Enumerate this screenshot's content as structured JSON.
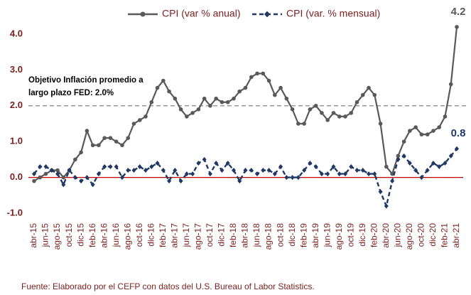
{
  "chart_data": {
    "type": "line",
    "legend": "top",
    "annotation": {
      "lines": [
        "Objetivo Inflación promedio a",
        "largo plazo FED: 2.0%"
      ],
      "value": 2.0,
      "color": "#999999"
    },
    "zero_line": "#c00000",
    "source": "Fuente: Elaborado por el CEFP con datos del U.S. Bureau of Labor Statistics.",
    "categories": [
      "abr-15",
      null,
      "jun-15",
      null,
      "ago-15",
      null,
      "oct-15",
      null,
      "dic-15",
      null,
      "feb-16",
      null,
      "abr-16",
      null,
      "jun-16",
      null,
      "ago-16",
      null,
      "oct-16",
      null,
      "dic-16",
      null,
      "feb-17",
      null,
      "abr-17",
      null,
      "jun-17",
      null,
      "ago-17",
      null,
      "oct-17",
      null,
      "dic-17",
      null,
      "feb-18",
      null,
      "abr-18",
      null,
      "jun-18",
      null,
      "ago-18",
      null,
      "oct-18",
      null,
      "dic-18",
      null,
      "feb-19",
      null,
      "abr-19",
      null,
      "jun-19",
      null,
      "ago-19",
      null,
      "oct-19",
      null,
      "dic-19",
      null,
      "feb-20",
      null,
      "abr-20",
      null,
      "jun-20",
      null,
      "ago-20",
      null,
      "oct-20",
      null,
      "dic-20",
      null,
      "feb-21",
      null,
      "abr-21"
    ],
    "series": [
      {
        "name": "CPI (var % anual)",
        "color": "#595959",
        "dash": false,
        "marker": "circle",
        "values": [
          -0.1,
          0.0,
          0.1,
          0.2,
          0.2,
          0.0,
          0.2,
          0.5,
          0.7,
          1.3,
          0.9,
          0.9,
          1.1,
          1.1,
          1.0,
          0.9,
          1.1,
          1.5,
          1.6,
          1.7,
          2.1,
          2.5,
          2.7,
          2.4,
          2.2,
          1.9,
          1.7,
          1.8,
          1.9,
          2.2,
          2.0,
          2.2,
          2.1,
          2.1,
          2.2,
          2.4,
          2.5,
          2.8,
          2.9,
          2.9,
          2.7,
          2.3,
          2.5,
          2.2,
          1.9,
          1.5,
          1.5,
          1.9,
          2.0,
          1.8,
          1.6,
          1.8,
          1.7,
          1.7,
          1.8,
          2.1,
          2.3,
          2.5,
          2.3,
          1.5,
          0.3,
          0.1,
          0.6,
          1.0,
          1.3,
          1.4,
          1.2,
          1.2,
          1.3,
          1.4,
          1.7,
          2.6,
          4.2
        ],
        "value_labels": [
          null,
          null,
          null,
          null,
          null,
          null,
          null,
          null,
          null,
          null,
          null,
          null,
          null,
          null,
          null,
          null,
          null,
          null,
          null,
          null,
          null,
          null,
          null,
          null,
          null,
          null,
          null,
          null,
          null,
          null,
          null,
          null,
          null,
          null,
          null,
          null,
          null,
          null,
          null,
          null,
          null,
          null,
          null,
          null,
          null,
          null,
          null,
          null,
          null,
          null,
          null,
          null,
          null,
          null,
          null,
          null,
          null,
          null,
          null,
          null,
          null,
          null,
          null,
          null,
          null,
          null,
          null,
          null,
          null,
          null,
          null,
          null,
          "4.2"
        ]
      },
      {
        "name": "CPI (var. % mensual)",
        "color": "#1f3864",
        "dash": true,
        "marker": "diamond",
        "values": [
          0.1,
          0.3,
          0.3,
          0.2,
          0.1,
          -0.2,
          0.2,
          0.0,
          -0.1,
          0.0,
          -0.2,
          0.1,
          0.3,
          0.3,
          0.3,
          0.0,
          0.2,
          0.2,
          0.3,
          0.2,
          0.3,
          0.4,
          0.2,
          -0.1,
          0.2,
          -0.1,
          0.1,
          0.1,
          0.4,
          0.5,
          0.1,
          0.4,
          0.2,
          0.4,
          0.2,
          -0.1,
          0.2,
          0.2,
          0.1,
          0.2,
          0.2,
          0.1,
          0.3,
          0.0,
          0.0,
          0.0,
          0.2,
          0.4,
          0.3,
          0.1,
          0.1,
          0.3,
          0.1,
          0.1,
          0.3,
          0.2,
          0.2,
          0.1,
          0.1,
          -0.4,
          -0.8,
          -0.1,
          0.5,
          0.6,
          0.4,
          0.2,
          0.0,
          0.2,
          0.4,
          0.3,
          0.4,
          0.6,
          0.8
        ],
        "value_labels": [
          null,
          null,
          null,
          null,
          null,
          null,
          null,
          null,
          null,
          null,
          null,
          null,
          null,
          null,
          null,
          null,
          null,
          null,
          null,
          null,
          null,
          null,
          null,
          null,
          null,
          null,
          null,
          null,
          null,
          null,
          null,
          null,
          null,
          null,
          null,
          null,
          null,
          null,
          null,
          null,
          null,
          null,
          null,
          null,
          null,
          null,
          null,
          null,
          null,
          null,
          null,
          null,
          null,
          null,
          null,
          null,
          null,
          null,
          null,
          null,
          null,
          null,
          null,
          null,
          null,
          null,
          null,
          null,
          null,
          null,
          null,
          null,
          "0.8"
        ]
      }
    ],
    "ylim": [
      -1.2,
      4.4
    ],
    "yticks": [
      {
        "value": -1,
        "label": "-1.0"
      },
      {
        "value": 0,
        "label": "0.0"
      },
      {
        "value": 1,
        "label": "1.0"
      },
      {
        "value": 2,
        "label": "2.0"
      },
      {
        "value": 3,
        "label": "3.0"
      },
      {
        "value": 4,
        "label": "4.0"
      }
    ],
    "tick_color": "#7b1e1e"
  }
}
